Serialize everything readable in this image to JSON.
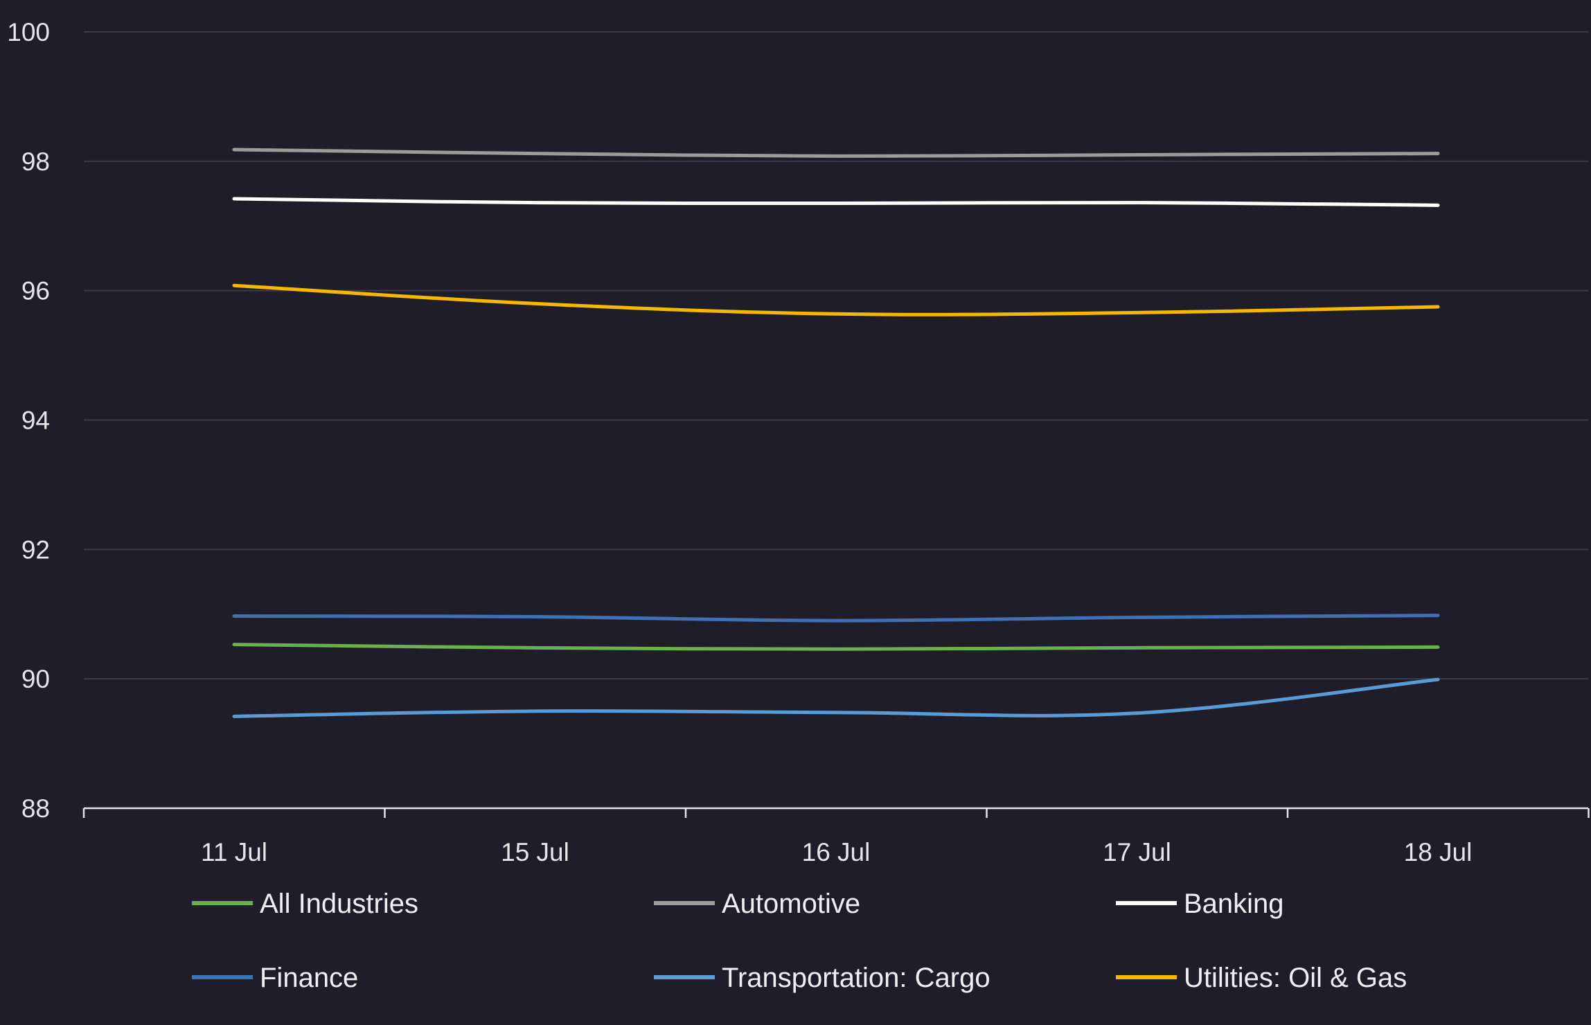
{
  "chart_data": {
    "type": "line",
    "title": "",
    "xlabel": "",
    "ylabel": "",
    "categories": [
      "11 Jul",
      "15 Jul",
      "16 Jul",
      "17 Jul",
      "18 Jul"
    ],
    "ylim": [
      88,
      100
    ],
    "yticks": [
      "88",
      "90",
      "92",
      "94",
      "96",
      "98",
      "100"
    ],
    "grid": true,
    "legend_position": "bottom",
    "series": [
      {
        "name": "All Industries",
        "color": "#6ab04c",
        "values": [
          90.53,
          90.48,
          90.46,
          90.48,
          90.49
        ]
      },
      {
        "name": "Automotive",
        "color": "#9b9b9b",
        "values": [
          98.18,
          98.12,
          98.08,
          98.1,
          98.12
        ]
      },
      {
        "name": "Banking",
        "color": "#ffffff",
        "values": [
          97.42,
          97.36,
          97.35,
          97.36,
          97.32
        ]
      },
      {
        "name": "Finance",
        "color": "#3f6fb5",
        "values": [
          90.97,
          90.96,
          90.9,
          90.95,
          90.98
        ]
      },
      {
        "name": "Transportation: Cargo",
        "color": "#5b9bd5",
        "values": [
          89.42,
          89.5,
          89.48,
          89.47,
          89.99
        ]
      },
      {
        "name": "Utilities: Oil & Gas",
        "color": "#f5b800",
        "values": [
          96.08,
          95.8,
          95.64,
          95.66,
          95.75
        ]
      }
    ]
  }
}
